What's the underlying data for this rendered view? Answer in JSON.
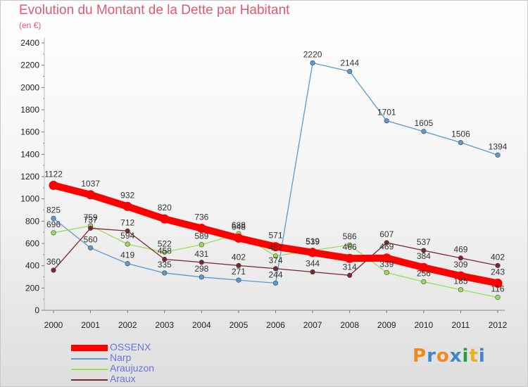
{
  "header": {
    "title": "Evolution du Montant de la Dette par Habitant",
    "subtitle": "(en €)"
  },
  "chart_data": {
    "type": "line",
    "title": "Evolution du Montant de la Dette par Habitant",
    "subtitle": "(en €)",
    "x": [
      2000,
      2001,
      2002,
      2003,
      2004,
      2005,
      2006,
      2007,
      2008,
      2009,
      2010,
      2011,
      2012
    ],
    "ylim": [
      0,
      2400
    ],
    "yticks": [
      0,
      200,
      400,
      600,
      800,
      1000,
      1200,
      1400,
      1600,
      1800,
      2000,
      2200,
      2400
    ],
    "grid": false,
    "legend_position": "bottom-left",
    "series": [
      {
        "name": "OSSENX",
        "color": "#ff0000",
        "values": [
          1122,
          1037,
          932,
          820,
          736,
          648,
          571,
          519,
          466,
          469,
          384,
          309,
          243
        ]
      },
      {
        "name": "Narp",
        "color": "#5b9ad0",
        "values": [
          825,
          560,
          419,
          335,
          298,
          271,
          244,
          2220,
          2144,
          1701,
          1605,
          1506,
          1394
        ]
      },
      {
        "name": "Araujuzon",
        "color": "#99dd55",
        "values": [
          696,
          759,
          594,
          522,
          589,
          688,
          487,
          539,
          586,
          339,
          256,
          185,
          116
        ]
      },
      {
        "name": "Araux",
        "color": "#7a2630",
        "values": [
          360,
          737,
          712,
          458,
          431,
          402,
          374,
          344,
          314,
          607,
          537,
          469,
          402
        ]
      }
    ]
  },
  "logo": {
    "letters": [
      {
        "ch": "P",
        "color": "#f08a1c"
      },
      {
        "ch": "r",
        "color": "#3f86c6"
      },
      {
        "ch": "o",
        "color": "#f08a1c"
      },
      {
        "ch": "x",
        "color": "#3f86c6"
      },
      {
        "ch": "i",
        "color": "#2a9a3e"
      },
      {
        "ch": "t",
        "color": "#e8b21b"
      },
      {
        "ch": "i",
        "color": "#3f86c6"
      }
    ]
  }
}
